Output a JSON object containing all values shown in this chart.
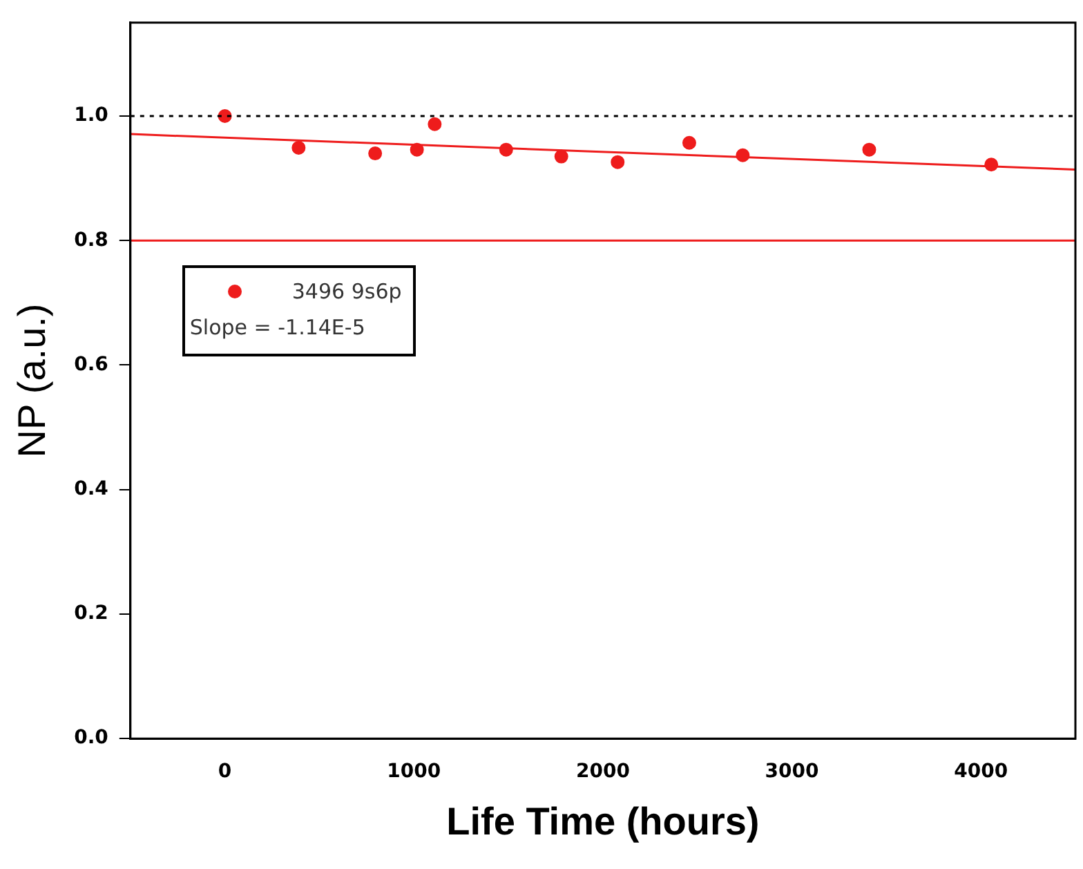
{
  "chart_data": {
    "type": "scatter",
    "xlabel": "Life Time (hours)",
    "ylabel": "NP (a.u.)",
    "xlim": [
      -500,
      4500
    ],
    "xticks": [
      0,
      1000,
      2000,
      3000,
      4000
    ],
    "ylim": [
      0,
      1.15
    ],
    "yticks": [
      {
        "value": 0,
        "label": "0.0"
      },
      {
        "value": 0.2,
        "label": "0.2"
      },
      {
        "value": 0.4,
        "label": "0.4"
      },
      {
        "value": 0.6,
        "label": "0.6"
      },
      {
        "value": 0.8,
        "label": "0.8"
      },
      {
        "value": 1,
        "label": "1.0"
      }
    ],
    "grid": false,
    "legend": "top left",
    "marker": "circle",
    "series": [
      {
        "name": "3496 9s6p",
        "color": "#ee1c1c",
        "x": [
          0,
          390,
          795,
          1016,
          1110,
          1488,
          1780,
          2078,
          2457,
          2740,
          3409,
          4055
        ],
        "values": [
          1.0,
          0.949,
          0.94,
          0.946,
          0.987,
          0.946,
          0.935,
          0.926,
          0.957,
          0.937,
          0.946,
          0.922
        ]
      },
      {
        "type": "line",
        "color": "#ee1c1c",
        "marker": "none",
        "x": [
          -500,
          4500
        ],
        "values": [
          0.971,
          0.914
        ]
      }
    ],
    "ref_lines": [
      {
        "axis": "y",
        "value": 1.0,
        "color": "#000000",
        "line_style": "dotted"
      },
      {
        "axis": "y",
        "value": 0.8,
        "color": "#ee1c1c",
        "line_style": "solid"
      }
    ],
    "annotations": [
      "Slope = -1.14E-5"
    ]
  }
}
